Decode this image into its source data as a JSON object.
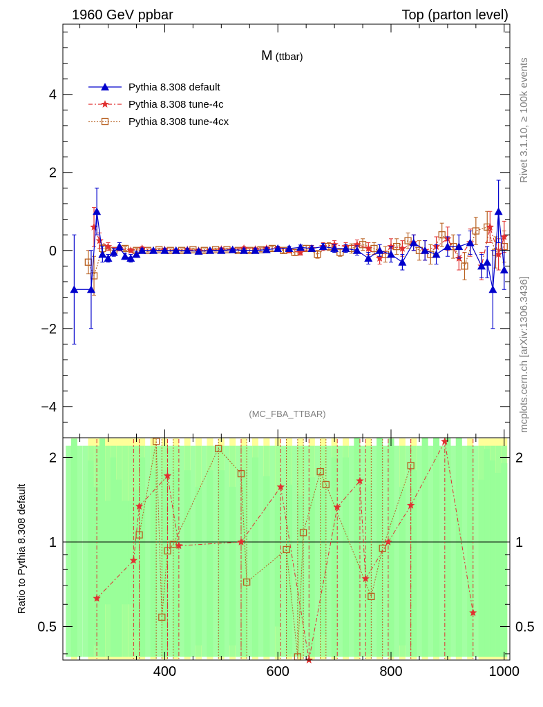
{
  "header": {
    "left": "1960 GeV ppbar",
    "right": "Top (parton level)"
  },
  "side_labels": {
    "rivet": "Rivet 3.1.10, ≥ 100k events",
    "mcplots": "mcplots.cern.ch [arXiv:1306.3436]"
  },
  "colors": {
    "default": "#0000cc",
    "tune4c": "#e03030",
    "tune4cx": "#b86020",
    "band_green": "#99ff99",
    "band_yellow": "#ffff99"
  },
  "chart_data": {
    "type": "line",
    "title_main": "M",
    "title_sub": "(ttbar)",
    "watermark": "(MC_FBA_TTBAR)",
    "xlim": [
      220,
      1010
    ],
    "ylim": [
      -4.8,
      5.8
    ],
    "x_ticks": [
      "400",
      "600",
      "800",
      "1000"
    ],
    "y_ticks": [
      "4",
      "2",
      "0",
      "−2",
      "−4"
    ],
    "legend": [
      "Pythia 8.308 default",
      "Pythia 8.308 tune-4c",
      "Pythia 8.308 tune-4cx"
    ],
    "series": [
      {
        "name": "Pythia 8.308 default",
        "marker": "triangle",
        "x": [
          240,
          270,
          280,
          290,
          300,
          310,
          320,
          330,
          340,
          350,
          360,
          380,
          400,
          420,
          440,
          460,
          480,
          500,
          520,
          540,
          560,
          580,
          600,
          620,
          640,
          660,
          680,
          700,
          720,
          740,
          760,
          780,
          800,
          820,
          840,
          860,
          880,
          900,
          920,
          940,
          960,
          970,
          980,
          990,
          1000
        ],
        "y": [
          -1.0,
          -1.0,
          1.0,
          -0.1,
          -0.2,
          -0.05,
          0.1,
          -0.15,
          -0.2,
          -0.1,
          0.0,
          0.0,
          0.0,
          0.0,
          0.0,
          -0.02,
          0.0,
          0.0,
          0.02,
          0.0,
          0.0,
          0.02,
          0.05,
          0.05,
          0.08,
          0.05,
          0.1,
          0.05,
          0.05,
          0.0,
          -0.2,
          0.0,
          -0.1,
          -0.3,
          0.2,
          0.0,
          -0.1,
          0.1,
          0.1,
          0.2,
          -0.4,
          -0.3,
          -1.0,
          1.0,
          -0.5
        ],
        "err": [
          1.4,
          1.0,
          0.6,
          0.2,
          0.1,
          0.1,
          0.1,
          0.08,
          0.1,
          0.08,
          0.05,
          0.04,
          0.04,
          0.04,
          0.04,
          0.04,
          0.04,
          0.04,
          0.04,
          0.04,
          0.05,
          0.05,
          0.05,
          0.06,
          0.06,
          0.07,
          0.08,
          0.1,
          0.1,
          0.12,
          0.15,
          0.15,
          0.2,
          0.2,
          0.2,
          0.25,
          0.25,
          0.25,
          0.3,
          0.3,
          0.3,
          0.4,
          1.0,
          0.8,
          0.5
        ]
      },
      {
        "name": "Pythia 8.308 tune-4c",
        "marker": "star",
        "x": [
          275,
          285,
          300,
          320,
          340,
          360,
          380,
          400,
          420,
          440,
          460,
          480,
          500,
          520,
          540,
          560,
          580,
          600,
          620,
          640,
          660,
          680,
          700,
          720,
          740,
          760,
          780,
          800,
          820,
          840,
          860,
          880,
          900,
          920,
          940,
          960,
          975,
          990,
          1000
        ],
        "y": [
          0.6,
          0.25,
          0.1,
          0.05,
          0.0,
          0.05,
          0.0,
          0.02,
          0.0,
          0.02,
          0.0,
          0.0,
          0.03,
          0.02,
          0.05,
          0.03,
          0.05,
          0.05,
          0.0,
          -0.05,
          0.05,
          0.1,
          0.15,
          0.1,
          0.15,
          0.05,
          -0.2,
          0.1,
          0.05,
          0.2,
          0.0,
          0.1,
          0.3,
          -0.2,
          0.2,
          -0.4,
          0.6,
          -0.1,
          0.35
        ],
        "err": [
          0.5,
          0.2,
          0.1,
          0.06,
          0.05,
          0.05,
          0.04,
          0.04,
          0.04,
          0.04,
          0.04,
          0.04,
          0.04,
          0.04,
          0.05,
          0.05,
          0.05,
          0.06,
          0.06,
          0.07,
          0.08,
          0.1,
          0.1,
          0.1,
          0.12,
          0.15,
          0.15,
          0.2,
          0.2,
          0.2,
          0.25,
          0.25,
          0.3,
          0.3,
          0.35,
          0.35,
          0.4,
          0.4,
          0.4
        ]
      },
      {
        "name": "Pythia 8.308 tune-4cx",
        "marker": "square",
        "x": [
          265,
          275,
          290,
          310,
          330,
          350,
          370,
          390,
          410,
          430,
          450,
          470,
          490,
          510,
          530,
          550,
          570,
          590,
          610,
          630,
          650,
          670,
          690,
          710,
          730,
          750,
          770,
          790,
          810,
          830,
          850,
          870,
          890,
          910,
          930,
          950,
          970,
          985,
          1000
        ],
        "y": [
          -0.3,
          -0.65,
          0.05,
          0.0,
          0.05,
          0.0,
          0.0,
          0.02,
          0.0,
          0.0,
          0.02,
          0.0,
          0.02,
          0.02,
          0.0,
          0.0,
          0.02,
          0.05,
          0.0,
          -0.05,
          0.05,
          -0.1,
          0.1,
          -0.05,
          0.05,
          0.15,
          0.05,
          -0.1,
          0.1,
          0.25,
          0.0,
          -0.1,
          0.4,
          0.1,
          -0.4,
          0.5,
          0.6,
          -0.05,
          0.1
        ],
        "err": [
          0.3,
          0.5,
          0.1,
          0.06,
          0.05,
          0.05,
          0.04,
          0.04,
          0.04,
          0.04,
          0.04,
          0.04,
          0.04,
          0.04,
          0.05,
          0.05,
          0.05,
          0.06,
          0.06,
          0.07,
          0.08,
          0.1,
          0.1,
          0.1,
          0.12,
          0.15,
          0.15,
          0.2,
          0.2,
          0.2,
          0.25,
          0.25,
          0.3,
          0.3,
          0.35,
          0.35,
          0.4,
          0.4,
          0.4
        ]
      }
    ],
    "ratio": {
      "ylabel": "Ratio to Pythia 8.308 default",
      "ylim": [
        0.38,
        2.35
      ],
      "y_ticks": [
        "2",
        "1",
        "0.5"
      ],
      "reference": 1.0,
      "tune4c_points": [
        [
          280,
          0.63
        ],
        [
          345,
          0.86
        ],
        [
          355,
          1.34
        ],
        [
          405,
          1.72
        ],
        [
          425,
          0.97
        ],
        [
          535,
          1.0
        ],
        [
          605,
          1.57
        ],
        [
          655,
          0.37
        ],
        [
          705,
          1.33
        ],
        [
          745,
          1.65
        ],
        [
          755,
          0.74
        ],
        [
          795,
          1.0
        ],
        [
          835,
          1.35
        ],
        [
          895,
          2.28
        ],
        [
          945,
          0.56
        ]
      ],
      "tune4cx_points": [
        [
          355,
          1.06
        ],
        [
          385,
          2.28
        ],
        [
          395,
          0.54
        ],
        [
          405,
          0.93
        ],
        [
          415,
          0.98
        ],
        [
          495,
          2.15
        ],
        [
          535,
          1.75
        ],
        [
          545,
          0.72
        ],
        [
          615,
          0.94
        ],
        [
          635,
          0.39
        ],
        [
          645,
          1.08
        ],
        [
          675,
          1.78
        ],
        [
          685,
          1.6
        ],
        [
          765,
          0.64
        ],
        [
          785,
          0.95
        ],
        [
          835,
          1.87
        ]
      ]
    }
  }
}
